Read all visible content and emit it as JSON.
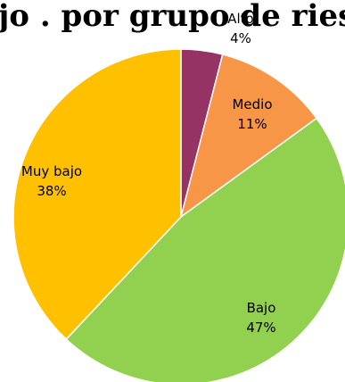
{
  "chart_data": {
    "type": "pie",
    "title": "jo      . por grupo de riesgo",
    "slices": [
      {
        "label": "Alto",
        "value": 4,
        "display": "4%",
        "color": "#953464"
      },
      {
        "label": "Medio",
        "value": 11,
        "display": "11%",
        "color": "#F79646"
      },
      {
        "label": "Bajo",
        "value": 47,
        "display": "47%",
        "color": "#92D050"
      },
      {
        "label": "Muy bajo",
        "value": 38,
        "display": "38%",
        "color": "#FFC000"
      }
    ],
    "start": "12 o'clock",
    "direction": "clockwise",
    "legend": "none"
  }
}
